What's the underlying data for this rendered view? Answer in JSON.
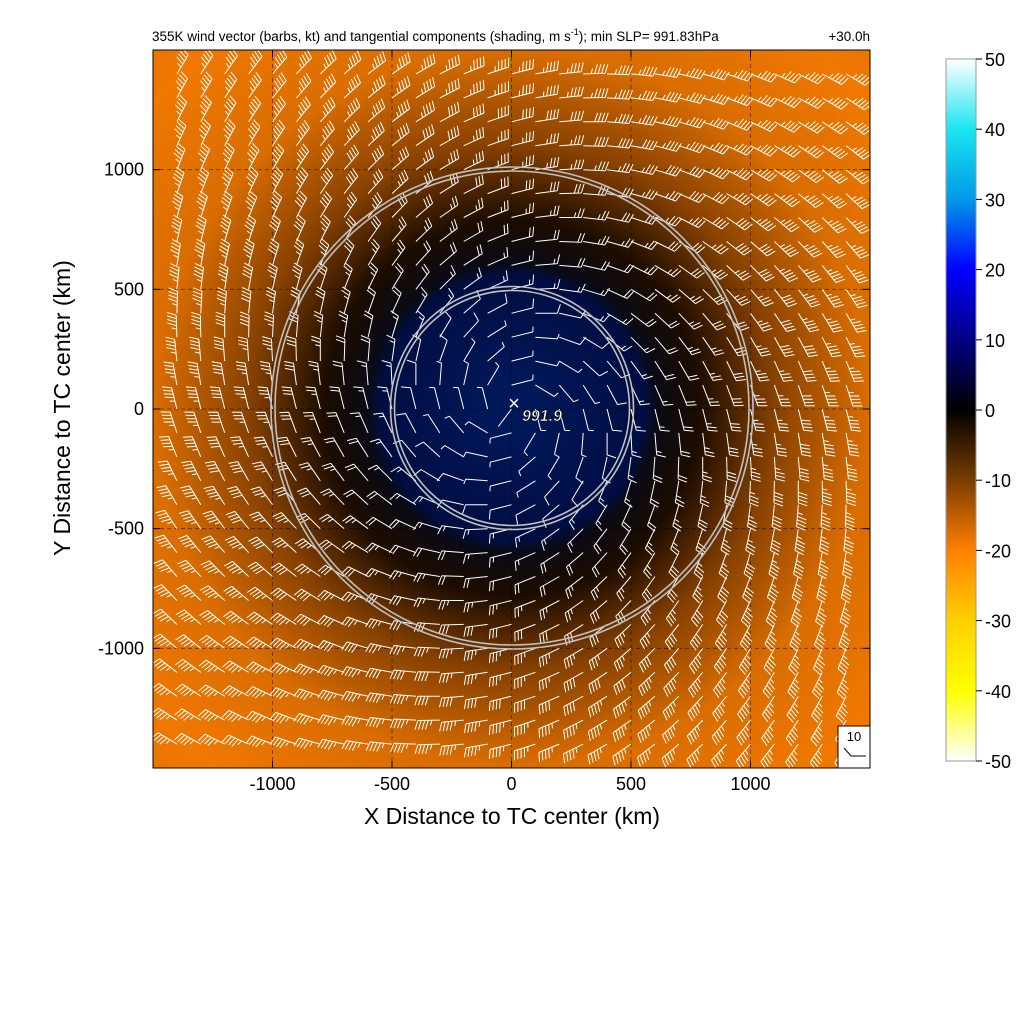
{
  "chart_data": {
    "type": "heatmap",
    "title_main": "355K wind vector (barbs, kt) and tangential components (shading, m s",
    "title_sup": "-1",
    "title_tail": "); min SLP= 991.83hPa",
    "lead_time": "+30.0h",
    "xlabel": "X Distance to TC center (km)",
    "ylabel": "Y Distance to TC center (km)",
    "xlim": [
      -1500,
      1500
    ],
    "ylim": [
      -1500,
      1500
    ],
    "xticks": [
      -1000,
      -500,
      0,
      500,
      1000
    ],
    "xtick_labels": [
      "-1000",
      "-500",
      "0",
      "500",
      "1000"
    ],
    "yticks": [
      1000,
      500,
      0,
      -500,
      -1000
    ],
    "ytick_labels": [
      "1000",
      "500",
      "0",
      "-500",
      "-1000"
    ],
    "grid": true,
    "colorbar": {
      "range": [
        -50,
        50
      ],
      "ticks": [
        50,
        40,
        30,
        20,
        10,
        0,
        -10,
        -20,
        -30,
        -40,
        -50
      ],
      "tick_labels": [
        "50",
        "40",
        "30",
        "20",
        "10",
        "0",
        "-10",
        "-20",
        "-30",
        "-40",
        "-50"
      ],
      "stops": [
        {
          "value": 50,
          "color": "#ffffff"
        },
        {
          "value": 40,
          "color": "#1ae6f0"
        },
        {
          "value": 30,
          "color": "#0099e6"
        },
        {
          "value": 20,
          "color": "#0000ff"
        },
        {
          "value": 10,
          "color": "#000080"
        },
        {
          "value": 0,
          "color": "#000000"
        },
        {
          "value": -10,
          "color": "#7a3d00"
        },
        {
          "value": -20,
          "color": "#ff8000"
        },
        {
          "value": -30,
          "color": "#ffd000"
        },
        {
          "value": -40,
          "color": "#ffff00"
        },
        {
          "value": -50,
          "color": "#ffffff"
        }
      ]
    },
    "shading_field": {
      "inner_disk_radius_km": 500,
      "inner_value": 5,
      "ring_value": -20
    },
    "reference_circles_km": [
      500,
      1000
    ],
    "center_marker": {
      "symbol": "×",
      "x": 0,
      "y": 0,
      "label": "991.9"
    },
    "barb_grid_spacing_km": 100,
    "reference_barb": {
      "label": "10",
      "speed_kt": 10
    }
  },
  "colors": {
    "barb": "#ffffff",
    "circle": "#c0c0c0",
    "grid": "#000000"
  }
}
